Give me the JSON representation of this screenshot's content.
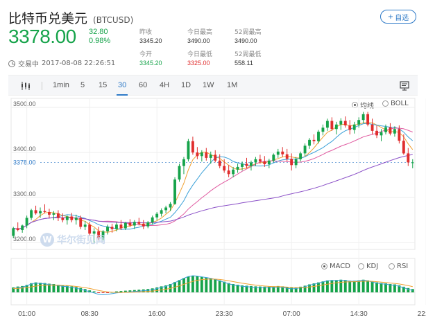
{
  "header": {
    "title": "比特币兑美元",
    "ticker": "(BTCUSD)",
    "follow_label": "自选",
    "follow_plus": "+",
    "price": "3378.00",
    "change": "32.80",
    "change_pct": "0.98%",
    "status_label": "交易中",
    "timestamp": "2017-08-08 22:26:51",
    "stats": [
      {
        "label": "昨收",
        "value": "3345.20"
      },
      {
        "label": "今日最高",
        "value": "3490.00"
      },
      {
        "label": "52周最高",
        "value": "3490.00"
      },
      {
        "label": "今开",
        "value": "3345.20"
      },
      {
        "label": "今日最低",
        "value": "3325.00"
      },
      {
        "label": "52周最低",
        "value": "558.11"
      }
    ],
    "colors": {
      "up": "#16a34a",
      "down": "#e02d2d",
      "accent": "#2d79c7"
    }
  },
  "toolbar": {
    "chart_icon": "candlestick-icon",
    "periods": [
      "1min",
      "5",
      "15",
      "30",
      "60",
      "4H",
      "1D",
      "1W",
      "1M"
    ],
    "selected": "30",
    "fullscreen_icon": "monitor-icon"
  },
  "overlay_options": {
    "ma": "均线",
    "boll": "BOLL",
    "selected": "均线"
  },
  "indicator_options": {
    "macd": "MACD",
    "kdj": "KDJ",
    "rsi": "RSI",
    "selected": "MACD"
  },
  "watermark": {
    "logo": "W",
    "text": "华尔街见闻"
  },
  "chart_data": {
    "type": "candlestick",
    "y_ticks": [
      "3500.00",
      "3400.00",
      "3300.00",
      "3200.00"
    ],
    "y_tick_values": [
      3500,
      3400,
      3300,
      3200
    ],
    "current_price_label": "3378.00",
    "current_price": 3378,
    "ylim": [
      3185,
      3520
    ],
    "x_ticks": [
      "01:00",
      "08:30",
      "16:00",
      "23:30",
      "07:00",
      "14:30",
      "22:00"
    ],
    "x_tick_index": [
      3,
      17,
      32,
      47,
      62,
      77,
      92
    ],
    "candles": [
      [
        3215,
        3235,
        3210,
        3232
      ],
      [
        3232,
        3245,
        3225,
        3228
      ],
      [
        3228,
        3240,
        3222,
        3238
      ],
      [
        3238,
        3260,
        3232,
        3255
      ],
      [
        3255,
        3275,
        3250,
        3272
      ],
      [
        3272,
        3282,
        3262,
        3265
      ],
      [
        3265,
        3278,
        3255,
        3270
      ],
      [
        3270,
        3285,
        3265,
        3268
      ],
      [
        3268,
        3275,
        3255,
        3262
      ],
      [
        3262,
        3270,
        3250,
        3265
      ],
      [
        3265,
        3272,
        3248,
        3255
      ],
      [
        3255,
        3265,
        3245,
        3250
      ],
      [
        3250,
        3260,
        3240,
        3258
      ],
      [
        3258,
        3266,
        3245,
        3250
      ],
      [
        3250,
        3262,
        3240,
        3255
      ],
      [
        3255,
        3260,
        3230,
        3235
      ],
      [
        3235,
        3248,
        3228,
        3240
      ],
      [
        3240,
        3246,
        3215,
        3220
      ],
      [
        3220,
        3232,
        3200,
        3225
      ],
      [
        3225,
        3235,
        3205,
        3210
      ],
      [
        3210,
        3228,
        3205,
        3225
      ],
      [
        3225,
        3240,
        3218,
        3235
      ],
      [
        3235,
        3242,
        3222,
        3230
      ],
      [
        3230,
        3245,
        3225,
        3240
      ],
      [
        3240,
        3250,
        3228,
        3232
      ],
      [
        3232,
        3246,
        3228,
        3244
      ],
      [
        3244,
        3252,
        3235,
        3238
      ],
      [
        3238,
        3250,
        3230,
        3246
      ],
      [
        3246,
        3255,
        3238,
        3242
      ],
      [
        3242,
        3250,
        3230,
        3236
      ],
      [
        3236,
        3248,
        3232,
        3245
      ],
      [
        3245,
        3260,
        3240,
        3256
      ],
      [
        3256,
        3268,
        3250,
        3264
      ],
      [
        3264,
        3276,
        3258,
        3272
      ],
      [
        3272,
        3282,
        3265,
        3278
      ],
      [
        3278,
        3290,
        3270,
        3286
      ],
      [
        3286,
        3345,
        3284,
        3340
      ],
      [
        3340,
        3375,
        3335,
        3370
      ],
      [
        3370,
        3390,
        3352,
        3385
      ],
      [
        3385,
        3430,
        3380,
        3425
      ],
      [
        3425,
        3435,
        3395,
        3400
      ],
      [
        3400,
        3412,
        3385,
        3392
      ],
      [
        3392,
        3405,
        3380,
        3400
      ],
      [
        3400,
        3410,
        3382,
        3388
      ],
      [
        3388,
        3402,
        3375,
        3395
      ],
      [
        3395,
        3405,
        3378,
        3382
      ],
      [
        3382,
        3396,
        3365,
        3370
      ],
      [
        3370,
        3385,
        3355,
        3360
      ],
      [
        3360,
        3372,
        3345,
        3352
      ],
      [
        3352,
        3368,
        3345,
        3362
      ],
      [
        3362,
        3375,
        3355,
        3368
      ],
      [
        3368,
        3380,
        3360,
        3375
      ],
      [
        3375,
        3388,
        3365,
        3370
      ],
      [
        3370,
        3382,
        3360,
        3378
      ],
      [
        3378,
        3390,
        3370,
        3385
      ],
      [
        3385,
        3395,
        3375,
        3380
      ],
      [
        3380,
        3392,
        3368,
        3374
      ],
      [
        3374,
        3386,
        3365,
        3382
      ],
      [
        3382,
        3398,
        3378,
        3395
      ],
      [
        3395,
        3408,
        3388,
        3402
      ],
      [
        3402,
        3412,
        3390,
        3396
      ],
      [
        3396,
        3408,
        3380,
        3386
      ],
      [
        3386,
        3398,
        3360,
        3372
      ],
      [
        3372,
        3390,
        3365,
        3385
      ],
      [
        3385,
        3402,
        3380,
        3398
      ],
      [
        3398,
        3420,
        3392,
        3415
      ],
      [
        3415,
        3432,
        3408,
        3428
      ],
      [
        3428,
        3440,
        3418,
        3425
      ],
      [
        3425,
        3450,
        3420,
        3446
      ],
      [
        3446,
        3462,
        3438,
        3455
      ],
      [
        3455,
        3475,
        3448,
        3470
      ],
      [
        3470,
        3478,
        3448,
        3452
      ],
      [
        3452,
        3468,
        3440,
        3462
      ],
      [
        3462,
        3476,
        3450,
        3470
      ],
      [
        3470,
        3480,
        3455,
        3460
      ],
      [
        3460,
        3472,
        3440,
        3450
      ],
      [
        3450,
        3468,
        3442,
        3462
      ],
      [
        3462,
        3478,
        3455,
        3472
      ],
      [
        3472,
        3490,
        3465,
        3485
      ],
      [
        3485,
        3490,
        3458,
        3462
      ],
      [
        3462,
        3475,
        3440,
        3448
      ],
      [
        3448,
        3460,
        3432,
        3438
      ],
      [
        3438,
        3452,
        3425,
        3445
      ],
      [
        3445,
        3462,
        3440,
        3456
      ],
      [
        3456,
        3465,
        3438,
        3442
      ],
      [
        3442,
        3458,
        3435,
        3452
      ],
      [
        3452,
        3460,
        3420,
        3426
      ],
      [
        3426,
        3440,
        3395,
        3398
      ],
      [
        3398,
        3410,
        3370,
        3378
      ],
      [
        3378,
        3385,
        3365,
        3378
      ]
    ],
    "macd_hist": [
      0.3,
      0.35,
      0.38,
      0.45,
      0.55,
      0.6,
      0.58,
      0.56,
      0.52,
      0.5,
      0.46,
      0.42,
      0.4,
      0.36,
      0.32,
      0.26,
      0.2,
      0.12,
      0.06,
      -0.02,
      -0.04,
      -0.02,
      0.02,
      0.06,
      0.08,
      0.1,
      0.12,
      0.14,
      0.16,
      0.18,
      0.2,
      0.24,
      0.3,
      0.36,
      0.42,
      0.5,
      0.62,
      0.74,
      0.86,
      0.96,
      1.0,
      0.98,
      0.94,
      0.9,
      0.86,
      0.8,
      0.72,
      0.64,
      0.56,
      0.5,
      0.46,
      0.42,
      0.4,
      0.38,
      0.36,
      0.35,
      0.34,
      0.34,
      0.36,
      0.38,
      0.36,
      0.32,
      0.28,
      0.3,
      0.34,
      0.4,
      0.48,
      0.54,
      0.6,
      0.66,
      0.72,
      0.74,
      0.74,
      0.76,
      0.74,
      0.7,
      0.7,
      0.72,
      0.76,
      0.72,
      0.66,
      0.6,
      0.56,
      0.54,
      0.5,
      0.48,
      0.42,
      0.34,
      0.26,
      0.2
    ]
  }
}
